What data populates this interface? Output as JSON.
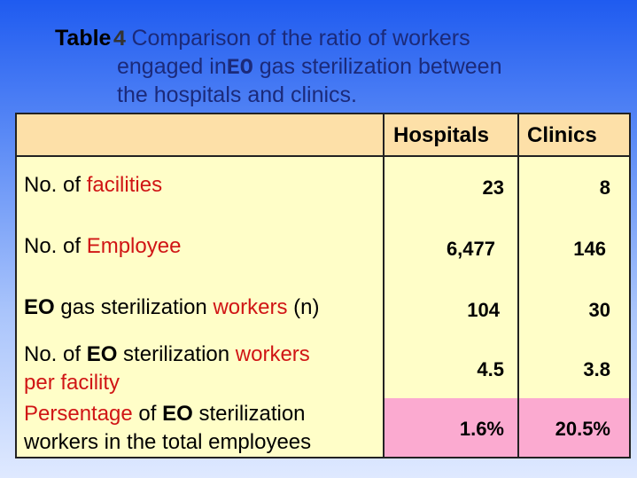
{
  "title": {
    "table_word": "Table",
    "table_number": "4",
    "line1": "Comparison of the ratio of workers",
    "line2_pre": "engaged in",
    "line2_eo": "EO",
    "line2_post": "gas sterilization between",
    "line3": "the hospitals and clinics."
  },
  "table": {
    "columns": [
      "Hospitals",
      "Clinics"
    ],
    "rows": [
      {
        "label_a": "No. of ",
        "label_b": "facilities",
        "hospitals": "23",
        "clinics": "8"
      },
      {
        "label_a": "No. of ",
        "label_b": "Employee",
        "hospitals": "6,477",
        "clinics": "146"
      },
      {
        "label_a": "EO",
        "label_b": " gas sterilization ",
        "label_c": "workers",
        "label_d": " (n)",
        "hospitals": "104",
        "clinics": "30"
      },
      {
        "label_a": "No. of ",
        "label_b": "EO",
        "label_c": " sterilization ",
        "label_d": "workers",
        "label_e": "per facility",
        "hospitals": "4.5",
        "clinics": "3.8"
      },
      {
        "label_a": "Persentage",
        "label_b": " of ",
        "label_c": "EO",
        "label_d": " sterilization",
        "label_e": "workers in the total employees",
        "hospitals": "1.6%",
        "clinics": "20.5%"
      }
    ]
  },
  "colors": {
    "header_bg": "#fde0a8",
    "body_bg": "#fffec8",
    "highlight": "#fbaad0",
    "accent_red": "#d01515"
  }
}
